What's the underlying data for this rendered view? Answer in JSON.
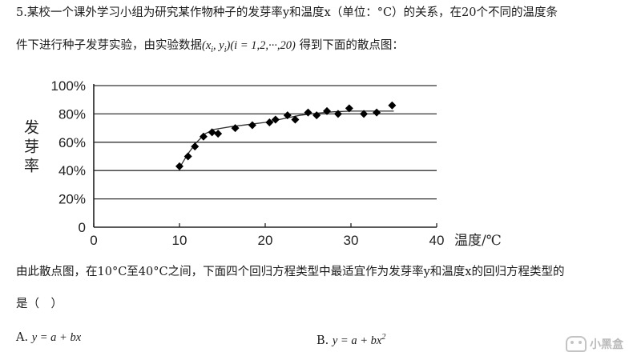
{
  "question": {
    "line1": "5.某校一个课外学习小组为研究某作物种子的发芽率y和温度x（单位：°C）的关系，在20个不同的温度条",
    "line2_prefix": "件下进行种子发芽实验，由实验数据",
    "line2_math": "(x",
    "line2_math_mid": ", y",
    "line2_math_end": ")(i = 1,2,···,20)",
    "sub_i": "i",
    "line2_suffix": "得到下面的散点图：",
    "line3": "由此散点图，在10°C至40°C之间，下面四个回归方程类型中最适宜作为发芽率y和温度x的回归方程类型的",
    "line4": "是（　）"
  },
  "options": {
    "a_label": "A.",
    "a_formula": "y = a + bx",
    "b_label": "B.",
    "b_formula": "y = a + bx",
    "b_exp": "2"
  },
  "watermark": {
    "text": "小黑盒",
    "icon": "gamepad-icon"
  },
  "chart_data": {
    "type": "scatter",
    "xlabel": "温度/℃",
    "ylabel": "发芽率",
    "xlim": [
      0,
      40
    ],
    "ylim": [
      0,
      100
    ],
    "xticks": [
      "0",
      "10",
      "20",
      "30",
      "40"
    ],
    "yticks": [
      "0",
      "20%",
      "40%",
      "60%",
      "80%",
      "100%"
    ],
    "grid": "horizontal",
    "marker": "diamond",
    "color": "#000000",
    "points": [
      [
        10,
        43
      ],
      [
        11,
        50
      ],
      [
        11.8,
        57
      ],
      [
        12.8,
        64
      ],
      [
        13.8,
        67
      ],
      [
        14.5,
        66
      ],
      [
        16.5,
        70
      ],
      [
        18.5,
        72
      ],
      [
        20.5,
        74
      ],
      [
        21.2,
        76
      ],
      [
        22.6,
        79
      ],
      [
        23.5,
        76
      ],
      [
        25,
        81
      ],
      [
        26,
        79
      ],
      [
        27.2,
        82
      ],
      [
        28.5,
        80
      ],
      [
        29.8,
        84
      ],
      [
        31.5,
        80
      ],
      [
        33,
        81
      ],
      [
        34.8,
        86
      ]
    ],
    "trend": [
      [
        10,
        42
      ],
      [
        11,
        52
      ],
      [
        12,
        60
      ],
      [
        13,
        66
      ],
      [
        14,
        69
      ],
      [
        16,
        71
      ],
      [
        18,
        72.5
      ],
      [
        20,
        74
      ],
      [
        22,
        76.5
      ],
      [
        24,
        79
      ],
      [
        26,
        80.5
      ],
      [
        28,
        81.5
      ],
      [
        30,
        82
      ],
      [
        32,
        82
      ],
      [
        35,
        82
      ]
    ]
  }
}
